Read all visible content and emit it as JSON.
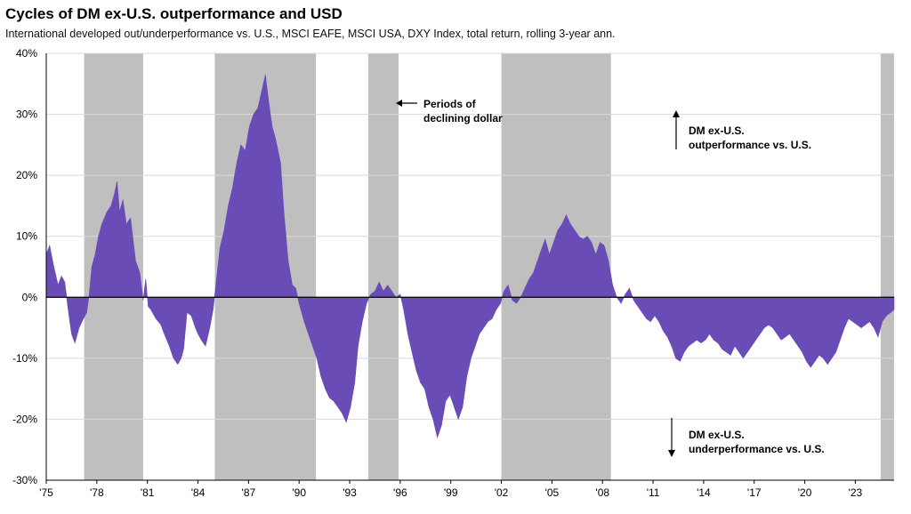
{
  "title": "Cycles of DM ex-U.S. outperformance and USD",
  "subtitle": "International developed out/underperformance vs. U.S., MSCI EAFE, MSCI USA, DXY Index, total return, rolling 3-year ann.",
  "colors": {
    "area": "#6a4cb6",
    "shade": "#bfbfbf",
    "grid": "#d9d9d9",
    "axis": "#000000"
  },
  "annotations": {
    "declining_dollar": [
      "Periods of",
      "declining dollar"
    ],
    "outperformance": [
      "DM ex-U.S.",
      "outperformance vs. U.S."
    ],
    "underperformance": [
      "DM ex-U.S.",
      "underperformance vs. U.S."
    ]
  },
  "chart_data": {
    "type": "area",
    "title": "Cycles of DM ex-U.S. outperformance and USD",
    "subtitle": "International developed out/underperformance vs. U.S., MSCI EAFE, MSCI USA, DXY Index, total return, rolling 3-year ann.",
    "xlabel": "",
    "ylabel": "",
    "xlim": [
      1975.0,
      2025.3
    ],
    "ylim": [
      -30,
      40
    ],
    "y_ticks": [
      -30,
      -20,
      -10,
      0,
      10,
      20,
      30,
      40
    ],
    "y_tick_labels": [
      "-30%",
      "-20%",
      "-10%",
      "0%",
      "10%",
      "20%",
      "30%",
      "40%"
    ],
    "x_ticks": [
      1975,
      1978,
      1981,
      1984,
      1987,
      1990,
      1993,
      1996,
      1999,
      2002,
      2005,
      2008,
      2011,
      2014,
      2017,
      2020,
      2023
    ],
    "x_tick_labels": [
      "'75",
      "'78",
      "'81",
      "'84",
      "'87",
      "'90",
      "'93",
      "'96",
      "'99",
      "'02",
      "'05",
      "'08",
      "'11",
      "'14",
      "'17",
      "'20",
      "'23"
    ],
    "grid": "horizontal",
    "shaded_periods": [
      [
        1977.25,
        1980.75
      ],
      [
        1985.0,
        1991.0
      ],
      [
        1994.1,
        1995.9
      ],
      [
        2002.0,
        2008.5
      ],
      [
        2024.5,
        2025.3
      ]
    ],
    "series": [
      {
        "points": [
          [
            1975.0,
            7
          ],
          [
            1975.2,
            8.5
          ],
          [
            1975.45,
            5
          ],
          [
            1975.7,
            2
          ],
          [
            1975.9,
            3.5
          ],
          [
            1976.1,
            2.5
          ],
          [
            1976.3,
            -2
          ],
          [
            1976.5,
            -6
          ],
          [
            1976.7,
            -7.5
          ],
          [
            1976.95,
            -5
          ],
          [
            1977.2,
            -3.5
          ],
          [
            1977.4,
            -2.5
          ],
          [
            1977.55,
            0.5
          ],
          [
            1977.7,
            5
          ],
          [
            1977.9,
            7
          ],
          [
            1978.1,
            10
          ],
          [
            1978.3,
            12
          ],
          [
            1978.6,
            14
          ],
          [
            1978.85,
            15
          ],
          [
            1979.05,
            17
          ],
          [
            1979.2,
            19
          ],
          [
            1979.35,
            14
          ],
          [
            1979.55,
            16
          ],
          [
            1979.75,
            12
          ],
          [
            1980.0,
            13
          ],
          [
            1980.3,
            6
          ],
          [
            1980.55,
            4
          ],
          [
            1980.75,
            -0.5
          ],
          [
            1980.9,
            3
          ],
          [
            1981.05,
            -1.5
          ],
          [
            1981.2,
            -2
          ],
          [
            1981.5,
            -3.5
          ],
          [
            1981.8,
            -4.5
          ],
          [
            1982.0,
            -6
          ],
          [
            1982.3,
            -8
          ],
          [
            1982.55,
            -10
          ],
          [
            1982.8,
            -11
          ],
          [
            1983.0,
            -10
          ],
          [
            1983.15,
            -8.5
          ],
          [
            1983.35,
            -2.5
          ],
          [
            1983.6,
            -3
          ],
          [
            1983.85,
            -5
          ],
          [
            1984.0,
            -6
          ],
          [
            1984.2,
            -7
          ],
          [
            1984.45,
            -8
          ],
          [
            1984.7,
            -5
          ],
          [
            1984.9,
            -2
          ],
          [
            1985.1,
            3
          ],
          [
            1985.3,
            8
          ],
          [
            1985.55,
            11
          ],
          [
            1985.8,
            15
          ],
          [
            1986.05,
            18
          ],
          [
            1986.3,
            22
          ],
          [
            1986.55,
            25
          ],
          [
            1986.8,
            24
          ],
          [
            1987.05,
            28
          ],
          [
            1987.3,
            30
          ],
          [
            1987.55,
            31
          ],
          [
            1987.8,
            34
          ],
          [
            1988.0,
            36.5
          ],
          [
            1988.2,
            32
          ],
          [
            1988.4,
            28
          ],
          [
            1988.6,
            26
          ],
          [
            1988.9,
            22
          ],
          [
            1989.1,
            14
          ],
          [
            1989.35,
            6
          ],
          [
            1989.6,
            2
          ],
          [
            1989.8,
            1.5
          ],
          [
            1990.0,
            -1
          ],
          [
            1990.3,
            -4
          ],
          [
            1990.55,
            -6
          ],
          [
            1990.8,
            -8
          ],
          [
            1991.05,
            -10
          ],
          [
            1991.3,
            -13
          ],
          [
            1991.55,
            -15
          ],
          [
            1991.8,
            -16.5
          ],
          [
            1992.05,
            -17
          ],
          [
            1992.3,
            -18
          ],
          [
            1992.55,
            -19
          ],
          [
            1992.8,
            -20.5
          ],
          [
            1993.05,
            -18
          ],
          [
            1993.3,
            -14
          ],
          [
            1993.5,
            -8
          ],
          [
            1993.75,
            -4
          ],
          [
            1994.0,
            -1
          ],
          [
            1994.25,
            0.5
          ],
          [
            1994.5,
            1
          ],
          [
            1994.75,
            2.5
          ],
          [
            1995.0,
            1
          ],
          [
            1995.25,
            2
          ],
          [
            1995.5,
            1
          ],
          [
            1995.75,
            0
          ],
          [
            1996.0,
            0.5
          ],
          [
            1996.2,
            -2
          ],
          [
            1996.45,
            -6
          ],
          [
            1996.7,
            -9
          ],
          [
            1996.95,
            -12
          ],
          [
            1997.2,
            -14
          ],
          [
            1997.45,
            -15
          ],
          [
            1997.7,
            -18
          ],
          [
            1997.95,
            -20
          ],
          [
            1998.2,
            -23
          ],
          [
            1998.45,
            -21
          ],
          [
            1998.7,
            -17
          ],
          [
            1998.95,
            -16
          ],
          [
            1999.2,
            -18
          ],
          [
            1999.45,
            -20
          ],
          [
            1999.7,
            -18
          ],
          [
            1999.95,
            -13
          ],
          [
            2000.2,
            -10
          ],
          [
            2000.45,
            -8
          ],
          [
            2000.7,
            -6
          ],
          [
            2000.95,
            -5
          ],
          [
            2001.2,
            -4
          ],
          [
            2001.45,
            -3.5
          ],
          [
            2001.7,
            -2
          ],
          [
            2001.95,
            -1
          ],
          [
            2002.15,
            1
          ],
          [
            2002.4,
            2
          ],
          [
            2002.65,
            -0.5
          ],
          [
            2002.9,
            -1
          ],
          [
            2003.15,
            0
          ],
          [
            2003.4,
            1.5
          ],
          [
            2003.65,
            3
          ],
          [
            2003.9,
            4
          ],
          [
            2004.15,
            6
          ],
          [
            2004.4,
            8
          ],
          [
            2004.6,
            9.5
          ],
          [
            2004.85,
            7
          ],
          [
            2005.1,
            9
          ],
          [
            2005.35,
            11
          ],
          [
            2005.6,
            12
          ],
          [
            2005.85,
            13.5
          ],
          [
            2006.1,
            12
          ],
          [
            2006.35,
            11
          ],
          [
            2006.6,
            10
          ],
          [
            2006.85,
            9.5
          ],
          [
            2007.1,
            10
          ],
          [
            2007.35,
            9
          ],
          [
            2007.6,
            7
          ],
          [
            2007.85,
            9
          ],
          [
            2008.1,
            8.5
          ],
          [
            2008.35,
            6
          ],
          [
            2008.6,
            2
          ],
          [
            2008.85,
            0
          ],
          [
            2009.1,
            -1
          ],
          [
            2009.35,
            0.5
          ],
          [
            2009.6,
            1.5
          ],
          [
            2009.85,
            -0.5
          ],
          [
            2010.1,
            -1.5
          ],
          [
            2010.35,
            -2.5
          ],
          [
            2010.6,
            -3.5
          ],
          [
            2010.85,
            -4
          ],
          [
            2011.1,
            -3
          ],
          [
            2011.35,
            -4
          ],
          [
            2011.6,
            -5.5
          ],
          [
            2011.85,
            -6.5
          ],
          [
            2012.1,
            -8
          ],
          [
            2012.35,
            -10
          ],
          [
            2012.6,
            -10.5
          ],
          [
            2012.85,
            -9
          ],
          [
            2013.1,
            -8
          ],
          [
            2013.35,
            -7.5
          ],
          [
            2013.6,
            -7
          ],
          [
            2013.85,
            -7.5
          ],
          [
            2014.1,
            -7
          ],
          [
            2014.35,
            -6
          ],
          [
            2014.6,
            -7
          ],
          [
            2014.85,
            -7.5
          ],
          [
            2015.1,
            -8.5
          ],
          [
            2015.35,
            -9
          ],
          [
            2015.6,
            -9.5
          ],
          [
            2015.85,
            -8
          ],
          [
            2016.1,
            -9
          ],
          [
            2016.35,
            -10
          ],
          [
            2016.6,
            -9
          ],
          [
            2016.85,
            -8
          ],
          [
            2017.1,
            -7
          ],
          [
            2017.35,
            -6
          ],
          [
            2017.6,
            -5
          ],
          [
            2017.85,
            -4.5
          ],
          [
            2018.1,
            -5
          ],
          [
            2018.35,
            -6
          ],
          [
            2018.6,
            -7
          ],
          [
            2018.85,
            -6.5
          ],
          [
            2019.1,
            -6
          ],
          [
            2019.35,
            -7
          ],
          [
            2019.6,
            -8
          ],
          [
            2019.85,
            -9
          ],
          [
            2020.1,
            -10.5
          ],
          [
            2020.35,
            -11.5
          ],
          [
            2020.6,
            -10.5
          ],
          [
            2020.85,
            -9.5
          ],
          [
            2021.1,
            -10
          ],
          [
            2021.35,
            -11
          ],
          [
            2021.6,
            -10
          ],
          [
            2021.85,
            -9
          ],
          [
            2022.1,
            -7
          ],
          [
            2022.35,
            -5
          ],
          [
            2022.6,
            -3.5
          ],
          [
            2022.85,
            -4
          ],
          [
            2023.1,
            -4.5
          ],
          [
            2023.35,
            -5
          ],
          [
            2023.6,
            -4.5
          ],
          [
            2023.85,
            -4
          ],
          [
            2024.1,
            -5
          ],
          [
            2024.35,
            -6.5
          ],
          [
            2024.6,
            -4
          ],
          [
            2024.85,
            -3
          ],
          [
            2025.1,
            -2.5
          ],
          [
            2025.3,
            -2
          ]
        ]
      }
    ]
  }
}
